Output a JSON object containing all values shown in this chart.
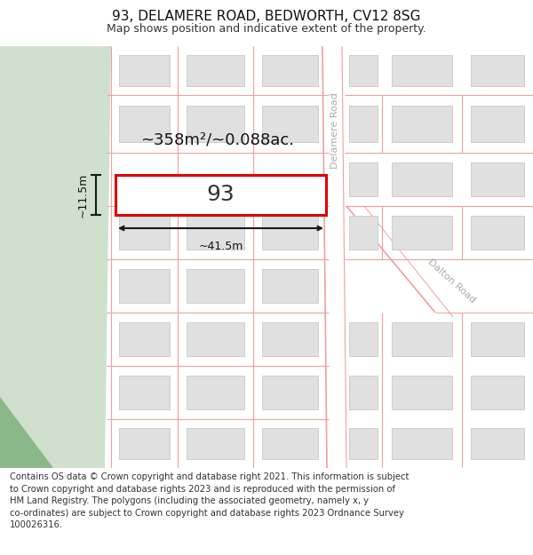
{
  "title": "93, DELAMERE ROAD, BEDWORTH, CV12 8SG",
  "subtitle": "Map shows position and indicative extent of the property.",
  "footer_text": "Contains OS data © Crown copyright and database right 2021. This information is subject\nto Crown copyright and database rights 2023 and is reproduced with the permission of\nHM Land Registry. The polygons (including the associated geometry, namely x, y\nco-ordinates) are subject to Crown copyright and database rights 2023 Ordnance Survey\n100026316.",
  "bg_color": "#ffffff",
  "green_color": "#cfe0cc",
  "road_color": "#f0a0a0",
  "road_lw": 0.8,
  "bfill": "#e0e0e0",
  "bline": "#c8c8c8",
  "plot_color": "#dd0000",
  "dim_color": "#1a1a1a",
  "label_color": "#aaaaaa",
  "area_text": "~358m²/~0.088ac.",
  "plot_label": "93",
  "dim_w": "~41.5m",
  "dim_h": "~11.5m",
  "title_fs": 11,
  "sub_fs": 9,
  "foot_fs": 7.2,
  "area_fs": 13,
  "plot_fs": 18,
  "dim_fs": 9,
  "road_label_fs": 8
}
